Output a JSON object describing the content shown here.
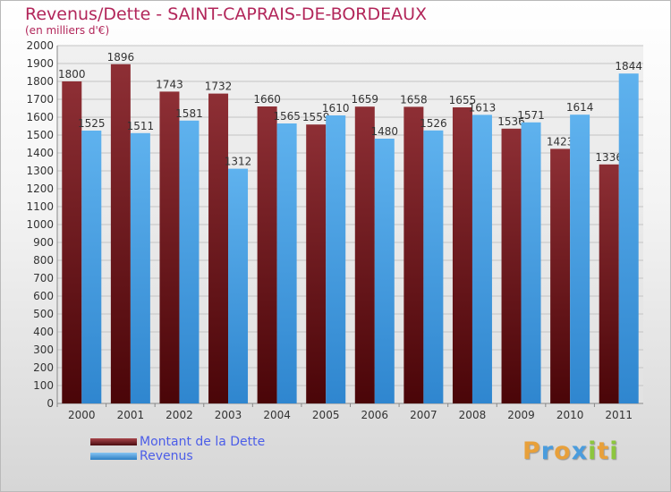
{
  "title": "Revenus/Dette - SAINT-CAPRAIS-DE-BORDEAUX",
  "subtitle": "(en milliers d'€)",
  "logo": {
    "letters": [
      "P",
      "r",
      "o",
      "x",
      "i",
      "t",
      "i"
    ],
    "colors": [
      "#e8a03a",
      "#4a9cdd",
      "#e8a03a",
      "#4a9cdd",
      "#8cc63e",
      "#e8a03a",
      "#8cc63e"
    ]
  },
  "colors": {
    "debt": "#7a1e24",
    "revenue": "#4da4e6",
    "title": "#b2265a",
    "legend_text": "#4b5de8"
  },
  "chart_data": {
    "type": "bar",
    "title": "Revenus/Dette - SAINT-CAPRAIS-DE-BORDEAUX",
    "ylabel": "(en milliers d'€)",
    "ylim": [
      0,
      2000
    ],
    "yticks": [
      0,
      100,
      200,
      300,
      400,
      500,
      600,
      700,
      800,
      900,
      1000,
      1100,
      1200,
      1300,
      1400,
      1500,
      1600,
      1700,
      1800,
      1900,
      2000
    ],
    "categories": [
      "2000",
      "2001",
      "2002",
      "2003",
      "2004",
      "2005",
      "2006",
      "2007",
      "2008",
      "2009",
      "2010",
      "2011"
    ],
    "grid": true,
    "legend_position": "bottom-left",
    "series": [
      {
        "name": "Montant de la Dette",
        "color": "#7a1e24",
        "values": [
          1800,
          1896,
          1743,
          1732,
          1660,
          1559,
          1659,
          1658,
          1655,
          1536,
          1423,
          1336
        ]
      },
      {
        "name": "Revenus",
        "color": "#4da4e6",
        "values": [
          1525,
          1511,
          1581,
          1312,
          1565,
          1610,
          1480,
          1526,
          1613,
          1571,
          1614,
          1844
        ]
      }
    ]
  }
}
